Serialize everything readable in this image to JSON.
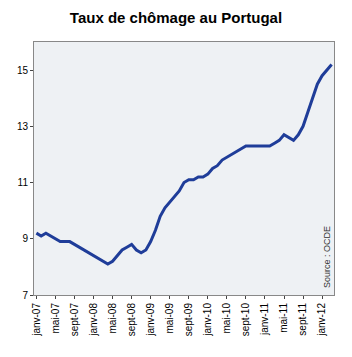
{
  "chart_data": {
    "type": "line",
    "title": "Taux de chômage au Portugal",
    "categories": [
      "janv-07",
      null,
      null,
      null,
      "mai-07",
      null,
      null,
      null,
      "sept-07",
      null,
      null,
      null,
      "janv-08",
      null,
      null,
      null,
      "mai-08",
      null,
      null,
      null,
      "sept-08",
      null,
      null,
      null,
      "janv-09",
      null,
      null,
      null,
      "mai-09",
      null,
      null,
      null,
      "sept-09",
      null,
      null,
      null,
      "janv-10",
      null,
      null,
      null,
      "mai-10",
      null,
      null,
      null,
      "sept-10",
      null,
      null,
      null,
      "janv-11",
      null,
      null,
      null,
      "mai-11",
      null,
      null,
      null,
      "sept-11",
      null,
      null,
      null,
      "janv-12",
      null,
      null
    ],
    "values": [
      9.2,
      9.1,
      9.2,
      9.1,
      9.0,
      8.9,
      8.9,
      8.9,
      8.8,
      8.7,
      8.6,
      8.5,
      8.4,
      8.3,
      8.2,
      8.1,
      8.2,
      8.4,
      8.6,
      8.7,
      8.8,
      8.6,
      8.5,
      8.6,
      8.9,
      9.3,
      9.8,
      10.1,
      10.3,
      10.5,
      10.7,
      11.0,
      11.1,
      11.1,
      11.2,
      11.2,
      11.3,
      11.5,
      11.6,
      11.8,
      11.9,
      12.0,
      12.1,
      12.2,
      12.3,
      12.3,
      12.3,
      12.3,
      12.3,
      12.3,
      12.4,
      12.5,
      12.7,
      12.6,
      12.5,
      12.7,
      13.0,
      13.5,
      14.0,
      14.5,
      14.8,
      15.0,
      15.2
    ],
    "color": "#1f3d99",
    "ylim": [
      7,
      16
    ],
    "yticks": [
      7,
      9,
      11,
      13,
      15
    ],
    "grid": false,
    "annotations": [
      "Source : OCDE"
    ]
  }
}
